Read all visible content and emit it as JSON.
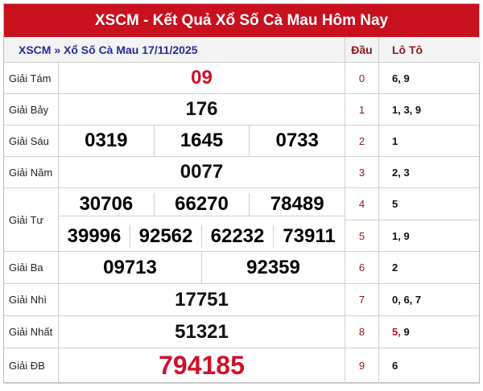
{
  "title": "XSCM - Kết Quả Xổ Số Cà Mau Hôm Nay",
  "breadcrumb": "XSCM » Xổ Số Cà Mau 17/11/2025",
  "headers": {
    "dau": "Đầu",
    "loto": "Lô Tô"
  },
  "prizes": {
    "g8": {
      "label": "Giải Tám",
      "numbers": [
        "09"
      ]
    },
    "g7": {
      "label": "Giải Bảy",
      "numbers": [
        "176"
      ]
    },
    "g6": {
      "label": "Giải Sáu",
      "numbers": [
        "0319",
        "1645",
        "0733"
      ]
    },
    "g5": {
      "label": "Giải Năm",
      "numbers": [
        "0077"
      ]
    },
    "g4": {
      "label": "Giải Tư",
      "numbers": [
        "30706",
        "66270",
        "78489",
        "39996",
        "92562",
        "62232",
        "73911"
      ]
    },
    "g3": {
      "label": "Giải Ba",
      "numbers": [
        "09713",
        "92359"
      ]
    },
    "g2": {
      "label": "Giải Nhì",
      "numbers": [
        "17751"
      ]
    },
    "g1": {
      "label": "Giải Nhất",
      "numbers": [
        "51321"
      ]
    },
    "db": {
      "label": "Giải ĐB",
      "numbers": [
        "794185"
      ]
    }
  },
  "loto": [
    {
      "dau": "0",
      "values": "6, 9"
    },
    {
      "dau": "1",
      "values": "1, 3, 9"
    },
    {
      "dau": "2",
      "values": "1"
    },
    {
      "dau": "3",
      "values": "2, 3"
    },
    {
      "dau": "4",
      "values": "5"
    },
    {
      "dau": "5",
      "values": "1, 9"
    },
    {
      "dau": "6",
      "values": "2"
    },
    {
      "dau": "7",
      "values": "0, 6, 7"
    },
    {
      "dau": "8",
      "values": "9",
      "highlight": "5,"
    },
    {
      "dau": "9",
      "values": "6"
    }
  ],
  "colors": {
    "header": "#c9101f",
    "highlight": "#d0102a",
    "dau": "#8b1a1a"
  }
}
